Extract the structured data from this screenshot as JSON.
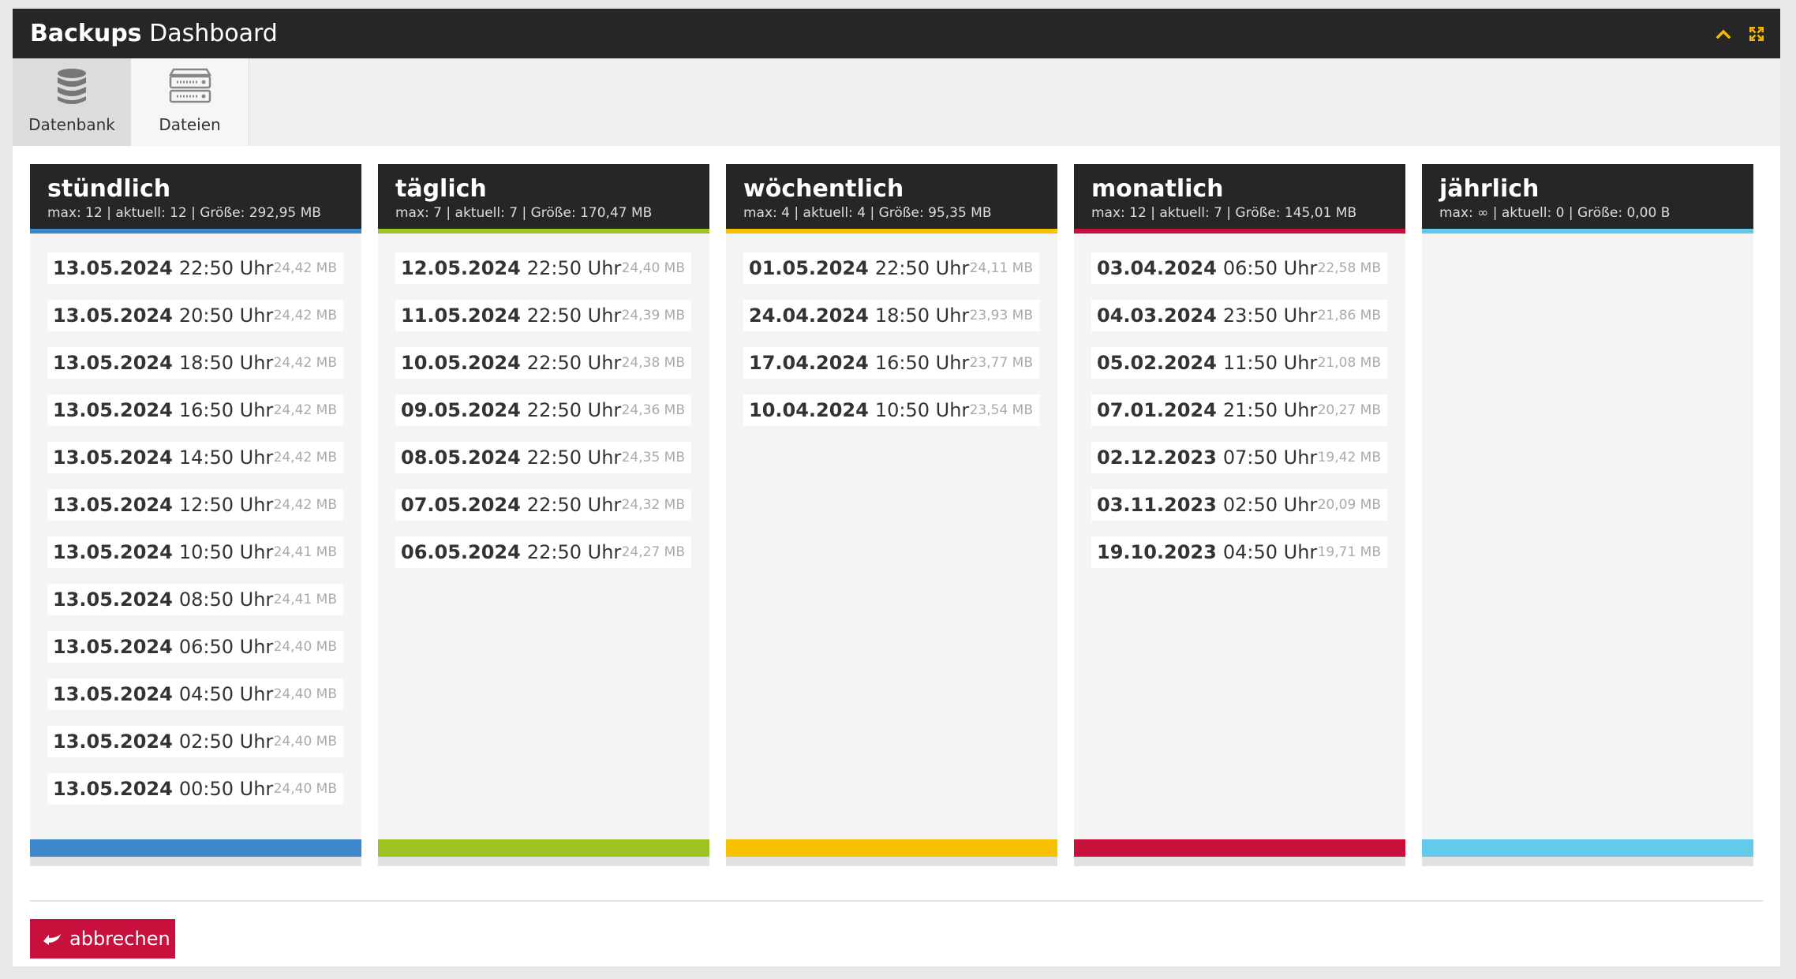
{
  "colors": {
    "titlebar": "#262626",
    "accent_icon": "#f5b800",
    "danger": "#c8103c"
  },
  "header": {
    "title_strong": "Backups",
    "title_light": "Dashboard",
    "collapse_icon": "chevron-up-icon",
    "expand_icon": "expand-icon"
  },
  "tabs": [
    {
      "label": "Datenbank",
      "icon": "database-icon",
      "active": true
    },
    {
      "label": "Dateien",
      "icon": "server-icon",
      "active": false
    }
  ],
  "columns": [
    {
      "title": "stündlich",
      "meta": "max: 12 | aktuell: 12 | Größe: 292,95 MB",
      "color": "#3d88cc",
      "entries": [
        {
          "date": "13.05.2024",
          "time": "22:50 Uhr",
          "size": "24,42 MB"
        },
        {
          "date": "13.05.2024",
          "time": "20:50 Uhr",
          "size": "24,42 MB"
        },
        {
          "date": "13.05.2024",
          "time": "18:50 Uhr",
          "size": "24,42 MB"
        },
        {
          "date": "13.05.2024",
          "time": "16:50 Uhr",
          "size": "24,42 MB"
        },
        {
          "date": "13.05.2024",
          "time": "14:50 Uhr",
          "size": "24,42 MB"
        },
        {
          "date": "13.05.2024",
          "time": "12:50 Uhr",
          "size": "24,42 MB"
        },
        {
          "date": "13.05.2024",
          "time": "10:50 Uhr",
          "size": "24,41 MB"
        },
        {
          "date": "13.05.2024",
          "time": "08:50 Uhr",
          "size": "24,41 MB"
        },
        {
          "date": "13.05.2024",
          "time": "06:50 Uhr",
          "size": "24,40 MB"
        },
        {
          "date": "13.05.2024",
          "time": "04:50 Uhr",
          "size": "24,40 MB"
        },
        {
          "date": "13.05.2024",
          "time": "02:50 Uhr",
          "size": "24,40 MB"
        },
        {
          "date": "13.05.2024",
          "time": "00:50 Uhr",
          "size": "24,40 MB"
        }
      ]
    },
    {
      "title": "täglich",
      "meta": "max: 7 | aktuell: 7 | Größe: 170,47 MB",
      "color": "#9bc424",
      "entries": [
        {
          "date": "12.05.2024",
          "time": "22:50 Uhr",
          "size": "24,40 MB"
        },
        {
          "date": "11.05.2024",
          "time": "22:50 Uhr",
          "size": "24,39 MB"
        },
        {
          "date": "10.05.2024",
          "time": "22:50 Uhr",
          "size": "24,38 MB"
        },
        {
          "date": "09.05.2024",
          "time": "22:50 Uhr",
          "size": "24,36 MB"
        },
        {
          "date": "08.05.2024",
          "time": "22:50 Uhr",
          "size": "24,35 MB"
        },
        {
          "date": "07.05.2024",
          "time": "22:50 Uhr",
          "size": "24,32 MB"
        },
        {
          "date": "06.05.2024",
          "time": "22:50 Uhr",
          "size": "24,27 MB"
        }
      ]
    },
    {
      "title": "wöchentlich",
      "meta": "max: 4 | aktuell: 4 | Größe: 95,35 MB",
      "color": "#f8c200",
      "entries": [
        {
          "date": "01.05.2024",
          "time": "22:50 Uhr",
          "size": "24,11 MB"
        },
        {
          "date": "24.04.2024",
          "time": "18:50 Uhr",
          "size": "23,93 MB"
        },
        {
          "date": "17.04.2024",
          "time": "16:50 Uhr",
          "size": "23,77 MB"
        },
        {
          "date": "10.04.2024",
          "time": "10:50 Uhr",
          "size": "23,54 MB"
        }
      ]
    },
    {
      "title": "monatlich",
      "meta": "max: 12 | aktuell: 7 | Größe: 145,01 MB",
      "color": "#c8103c",
      "entries": [
        {
          "date": "03.04.2024",
          "time": "06:50 Uhr",
          "size": "22,58 MB"
        },
        {
          "date": "04.03.2024",
          "time": "23:50 Uhr",
          "size": "21,86 MB"
        },
        {
          "date": "05.02.2024",
          "time": "11:50 Uhr",
          "size": "21,08 MB"
        },
        {
          "date": "07.01.2024",
          "time": "21:50 Uhr",
          "size": "20,27 MB"
        },
        {
          "date": "02.12.2023",
          "time": "07:50 Uhr",
          "size": "19,42 MB"
        },
        {
          "date": "03.11.2023",
          "time": "02:50 Uhr",
          "size": "20,09 MB"
        },
        {
          "date": "19.10.2023",
          "time": "04:50 Uhr",
          "size": "19,71 MB"
        }
      ]
    },
    {
      "title": "jährlich",
      "meta": "max: ∞ | aktuell: 0 | Größe: 0,00 B",
      "color": "#62cbec",
      "entries": []
    }
  ],
  "footer": {
    "cancel_label": "abbrechen",
    "cancel_icon": "return-arrow-icon"
  }
}
